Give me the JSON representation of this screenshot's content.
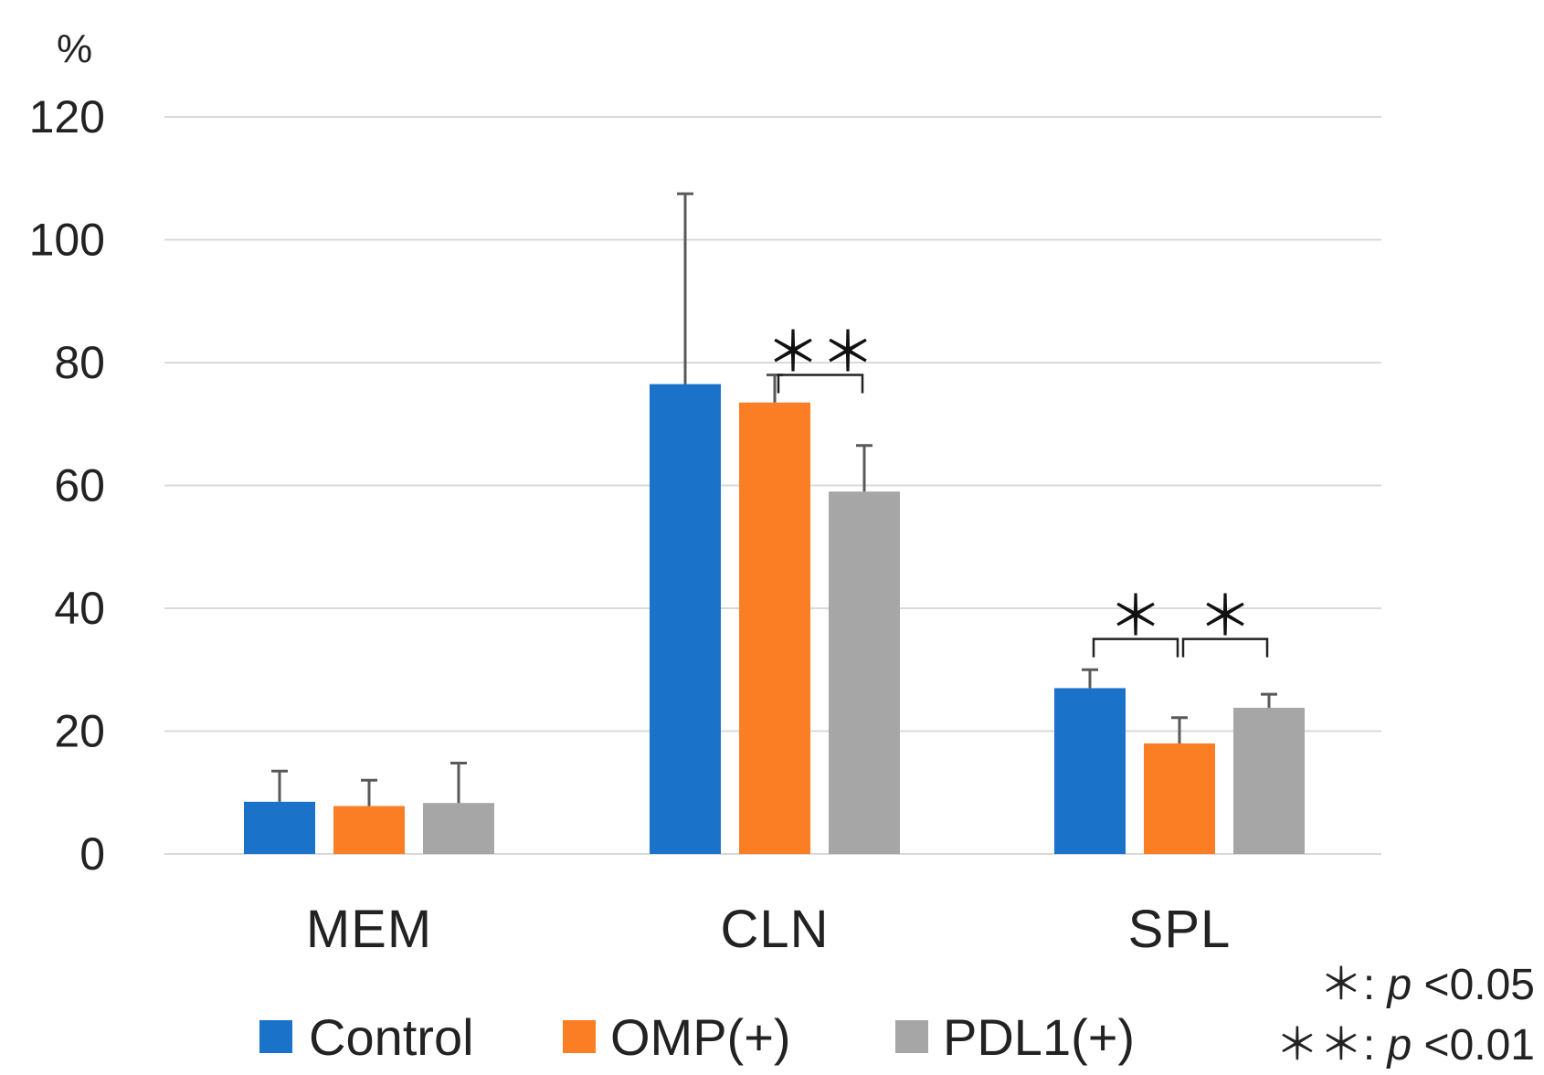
{
  "chart_data": {
    "type": "bar",
    "title": "",
    "ylabel": "%",
    "xlabel": "",
    "ylim": [
      0,
      120
    ],
    "yticks": [
      0,
      20,
      40,
      60,
      80,
      100,
      120
    ],
    "grid": true,
    "categories": [
      "MEM",
      "CLN",
      "SPL"
    ],
    "series": [
      {
        "name": "Control",
        "color": "#1a73c8",
        "values": [
          8.5,
          76.5,
          27
        ],
        "errors": [
          5,
          31,
          3
        ]
      },
      {
        "name": "OMP(+)",
        "color": "#fb7e24",
        "values": [
          7.8,
          73.5,
          18
        ],
        "errors": [
          4.2,
          4.5,
          4.2
        ]
      },
      {
        "name": "PDL1(+)",
        "color": "#a6a6a6",
        "values": [
          8.3,
          59,
          23.8
        ],
        "errors": [
          6.5,
          7.5,
          2.2
        ]
      }
    ],
    "significance": [
      {
        "category": "CLN",
        "from": "OMP(+)",
        "to": "PDL1(+)",
        "label": "**",
        "level": 78
      },
      {
        "category": "SPL",
        "from": "Control",
        "to": "OMP(+)",
        "label": "*",
        "level": 35
      },
      {
        "category": "SPL",
        "from": "OMP(+)",
        "to": "PDL1(+)",
        "label": "*",
        "level": 35
      }
    ],
    "legend_position": "bottom",
    "notes": [
      "*: p<0.05",
      "**: p<0.01"
    ]
  },
  "legend": {
    "items": [
      {
        "label": "Control",
        "color": "#1a73c8"
      },
      {
        "label": "OMP(+)",
        "color": "#fb7e24"
      },
      {
        "label": "PDL1(+)",
        "color": "#a6a6a6"
      }
    ]
  },
  "notes": {
    "line1_star": "＊: ",
    "line1_p": "p",
    "line1_val": " <0.05",
    "line2_star": "＊＊: ",
    "line2_p": "p",
    "line2_val": " <0.01"
  },
  "unit_label": "%"
}
